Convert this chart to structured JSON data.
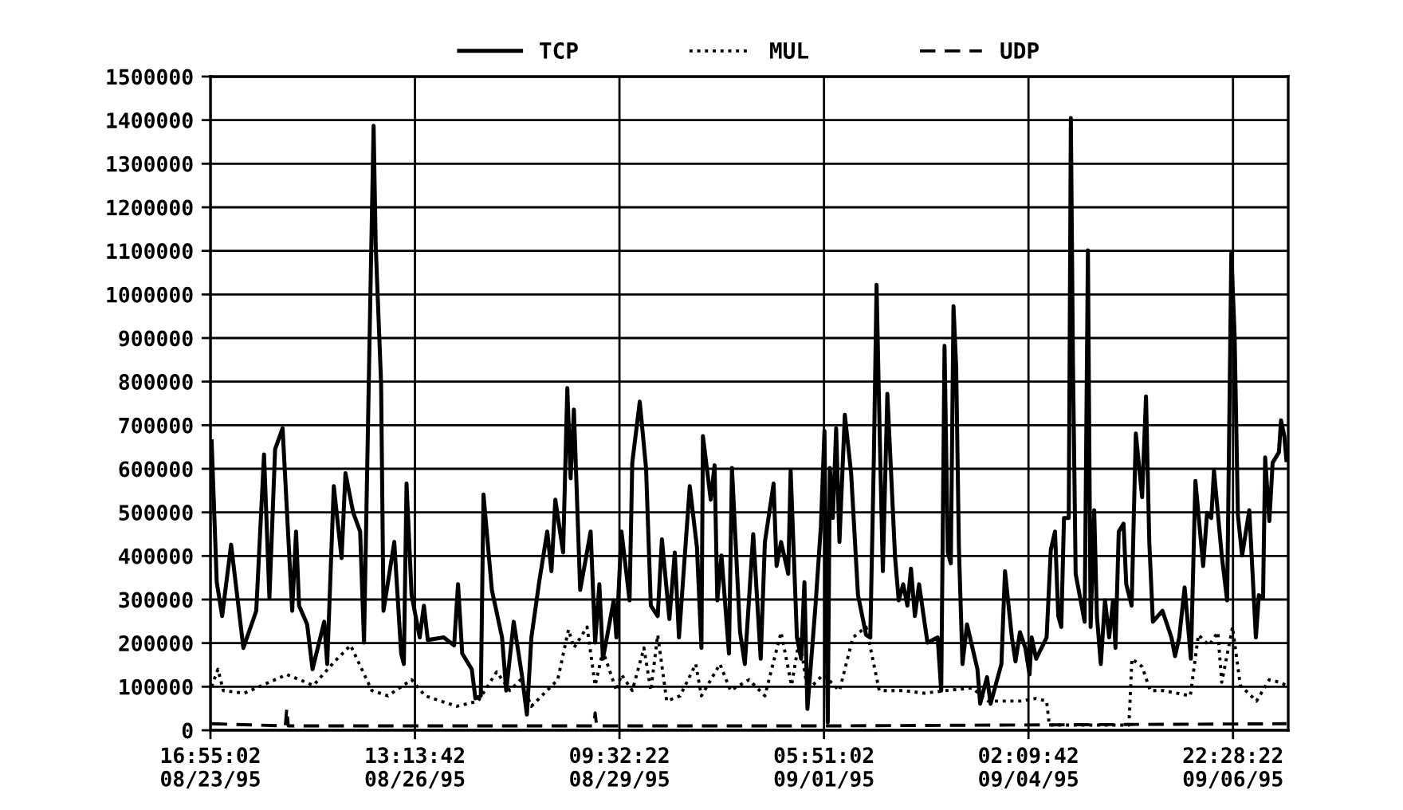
{
  "chart_data": {
    "type": "line",
    "legend": "top",
    "grid": true,
    "marker": "none",
    "xlim": [
      "1995-08-23T16:55:02",
      "1995-09-07T16:55"
    ],
    "ylim": [
      0,
      1500000
    ],
    "xticks": [
      {
        "value": "1995-08-23T16:55:02",
        "label": "16:55:02\n08/23/95"
      },
      {
        "value": "1995-08-26T13:13:42",
        "label": "13:13:42\n08/26/95"
      },
      {
        "value": "1995-08-29T09:32:22",
        "label": "09:32:22\n08/29/95"
      },
      {
        "value": "1995-09-01T05:51:02",
        "label": "05:51:02\n09/01/95"
      },
      {
        "value": "1995-09-04T02:09:42",
        "label": "02:09:42\n09/04/95"
      },
      {
        "value": "1995-09-06T22:28:22",
        "label": "22:28:22\n09/06/95"
      }
    ],
    "yticks": [
      0,
      100000,
      200000,
      300000,
      400000,
      500000,
      600000,
      700000,
      800000,
      900000,
      1000000,
      1100000,
      1200000,
      1300000,
      1400000,
      1500000
    ],
    "series": [
      {
        "name": "TCP",
        "color": "#000000",
        "line_style": "solid",
        "x": [
          "1995-08-23T17:19",
          "1995-08-23T19:01",
          "1995-08-23T20:49",
          "1995-08-23T23:49",
          "1995-08-24T03:55",
          "1995-08-24T08:13",
          "1995-08-24T10:49",
          "1995-08-24T12:37",
          "1995-08-24T14:31",
          "1995-08-24T17:01",
          "1995-08-24T20:13",
          "1995-08-24T21:31",
          "1995-08-24T22:31",
          "1995-08-25T01:13",
          "1995-08-25T03:01",
          "1995-08-25T06:55",
          "1995-08-25T07:55",
          "1995-08-25T10:07",
          "1995-08-25T12:43",
          "1995-08-25T14:01",
          "1995-08-25T16:37",
          "1995-08-25T18:55",
          "1995-08-25T20:13",
          "1995-08-25T22:19",
          "1995-08-25T23:25",
          "1995-08-26T00:07",
          "1995-08-26T01:55",
          "1995-08-26T02:43",
          "1995-08-26T06:19",
          "1995-08-26T08:37",
          "1995-08-26T09:31",
          "1995-08-26T10:25",
          "1995-08-26T12:07",
          "1995-08-26T14:49",
          "1995-08-26T16:13",
          "1995-08-26T17:31",
          "1995-08-26T22:49",
          "1995-08-27T02:19",
          "1995-08-27T03:37",
          "1995-08-27T05:01",
          "1995-08-27T08:13",
          "1995-08-27T09:25",
          "1995-08-27T11:13",
          "1995-08-27T12:07",
          "1995-08-27T14:55",
          "1995-08-27T18:19",
          "1995-08-27T19:43",
          "1995-08-27T22:13",
          "1995-08-28T00:55",
          "1995-08-28T02:37",
          "1995-08-28T04:07",
          "1995-08-28T06:43",
          "1995-08-28T09:25",
          "1995-08-28T10:49",
          "1995-08-28T12:07",
          "1995-08-28T14:43",
          "1995-08-28T16:07",
          "1995-08-28T17:13",
          "1995-08-28T18:19",
          "1995-08-28T20:25",
          "1995-08-28T23:55",
          "1995-08-29T01:25",
          "1995-08-29T02:49",
          "1995-08-29T04:01",
          "1995-08-29T07:37",
          "1995-08-29T08:31",
          "1995-08-29T10:13",
          "1995-08-29T12:55",
          "1995-08-29T13:49",
          "1995-08-29T16:19",
          "1995-08-29T18:25",
          "1995-08-29T20:01",
          "1995-08-29T22:19",
          "1995-08-29T23:43",
          "1995-08-30T02:13",
          "1995-08-30T04:01",
          "1995-08-30T05:25",
          "1995-08-30T09:01",
          "1995-08-30T11:25",
          "1995-08-30T12:55",
          "1995-08-30T13:25",
          "1995-08-30T16:01",
          "1995-08-30T17:19",
          "1995-08-30T18:13",
          "1995-08-30T19:37",
          "1995-08-30T22:07",
          "1995-08-30T23:07",
          "1995-08-31T01:49",
          "1995-08-31T03:25",
          "1995-08-31T06:13",
          "1995-08-31T08:43",
          "1995-08-31T10:07",
          "1995-08-31T13:01",
          "1995-08-31T14:01",
          "1995-08-31T15:31",
          "1995-08-31T17:55",
          "1995-08-31T18:43",
          "1995-08-31T20:49",
          "1995-08-31T22:13",
          "1995-08-31T23:19",
          "1995-09-01T00:19",
          "1995-09-01T03:01",
          "1995-09-01T04:49",
          "1995-09-01T06:01",
          "1995-09-01T07:07",
          "1995-09-01T07:49",
          "1995-09-01T08:49",
          "1995-09-01T09:55",
          "1995-09-01T11:01",
          "1995-09-01T12:49",
          "1995-09-01T14:55",
          "1995-09-01T17:13",
          "1995-09-01T19:55",
          "1995-09-01T21:19",
          "1995-09-01T22:31",
          "1995-09-01T23:25",
          "1995-09-02T00:31",
          "1995-09-02T01:31",
          "1995-09-02T03:01",
          "1995-09-02T05:37",
          "1995-09-02T06:49",
          "1995-09-02T08:19",
          "1995-09-02T09:43",
          "1995-09-02T10:55",
          "1995-09-02T12:13",
          "1995-09-02T13:37",
          "1995-09-02T16:25",
          "1995-09-02T19:49",
          "1995-09-02T21:01",
          "1995-09-02T22:07",
          "1995-09-02T23:13",
          "1995-09-03T00:13",
          "1995-09-03T01:07",
          "1995-09-03T02:01",
          "1995-09-03T02:55",
          "1995-09-03T04:07",
          "1995-09-03T05:37",
          "1995-09-03T09:07",
          "1995-09-03T10:01",
          "1995-09-03T12:19",
          "1995-09-03T13:31",
          "1995-09-03T17:07",
          "1995-09-03T18:19",
          "1995-09-03T20:37",
          "1995-09-03T21:49",
          "1995-09-03T23:19",
          "1995-09-04T01:07",
          "1995-09-04T02:31",
          "1995-09-04T03:13",
          "1995-09-04T04:43",
          "1995-09-04T08:13",
          "1995-09-04T09:37",
          "1995-09-04T11:01",
          "1995-09-04T12:07",
          "1995-09-04T13:07",
          "1995-09-04T14:01",
          "1995-09-04T15:37",
          "1995-09-04T16:19",
          "1995-09-04T17:01",
          "1995-09-04T17:55",
          "1995-09-04T20:55",
          "1995-09-04T22:01",
          "1995-09-04T22:55",
          "1995-09-05T00:07",
          "1995-09-05T01:01",
          "1995-09-05T02:19",
          "1995-09-05T03:43",
          "1995-09-05T05:07",
          "1995-09-05T06:25",
          "1995-09-05T07:13",
          "1995-09-05T08:19",
          "1995-09-05T09:55",
          "1995-09-05T10:49",
          "1995-09-05T12:37",
          "1995-09-05T14:01",
          "1995-09-05T16:07",
          "1995-09-05T17:25",
          "1995-09-05T18:31",
          "1995-09-05T19:43",
          "1995-09-05T22:55",
          "1995-09-06T01:55",
          "1995-09-06T03:07",
          "1995-09-06T04:31",
          "1995-09-06T06:19",
          "1995-09-06T08:25",
          "1995-09-06T09:55",
          "1995-09-06T12:31",
          "1995-09-06T13:49",
          "1995-09-06T15:13",
          "1995-09-06T16:07",
          "1995-09-06T18:43",
          "1995-09-06T20:31",
          "1995-09-06T21:55",
          "1995-09-06T23:01",
          "1995-09-07T00:07",
          "1995-09-07T01:31",
          "1995-09-07T03:55",
          "1995-09-07T06:07",
          "1995-09-07T07:07",
          "1995-09-07T08:31",
          "1995-09-07T09:13",
          "1995-09-07T10:37",
          "1995-09-07T11:43",
          "1995-09-07T13:49",
          "1995-09-07T14:31",
          "1995-09-07T15:37",
          "1995-09-07T16:19"
        ],
        "values": [
          663000,
          340000,
          262000,
          426000,
          189000,
          274000,
          633000,
          304000,
          645000,
          693000,
          274000,
          456000,
          286000,
          243000,
          140000,
          249000,
          152000,
          560000,
          395000,
          590000,
          499000,
          456000,
          201000,
          991000,
          1387000,
          1113000,
          797000,
          274000,
          432000,
          176000,
          152000,
          566000,
          310000,
          213000,
          286000,
          207000,
          213000,
          195000,
          335000,
          176000,
          140000,
          73000,
          79000,
          541000,
          322000,
          213000,
          91000,
          249000,
          128000,
          36000,
          213000,
          340000,
          456000,
          365000,
          529000,
          408000,
          785000,
          578000,
          736000,
          322000,
          456000,
          201000,
          335000,
          164000,
          298000,
          213000,
          456000,
          298000,
          614000,
          754000,
          602000,
          286000,
          262000,
          438000,
          255000,
          408000,
          213000,
          560000,
          420000,
          189000,
          675000,
          529000,
          608000,
          298000,
          401000,
          176000,
          602000,
          225000,
          152000,
          450000,
          164000,
          432000,
          566000,
          377000,
          432000,
          359000,
          596000,
          213000,
          164000,
          340000,
          49000,
          286000,
          468000,
          687000,
          18000,
          602000,
          487000,
          693000,
          432000,
          724000,
          590000,
          310000,
          219000,
          213000,
          626000,
          1022000,
          663000,
          365000,
          772000,
          395000,
          298000,
          335000,
          286000,
          371000,
          262000,
          335000,
          201000,
          213000,
          91000,
          882000,
          408000,
          383000,
          973000,
          833000,
          420000,
          152000,
          243000,
          140000,
          61000,
          122000,
          61000,
          152000,
          365000,
          213000,
          158000,
          225000,
          189000,
          128000,
          213000,
          164000,
          213000,
          414000,
          456000,
          262000,
          237000,
          487000,
          487000,
          1405000,
          845000,
          359000,
          249000,
          1101000,
          237000,
          505000,
          262000,
          152000,
          298000,
          213000,
          298000,
          189000,
          456000,
          474000,
          335000,
          286000,
          681000,
          535000,
          766000,
          432000,
          249000,
          274000,
          213000,
          170000,
          213000,
          328000,
          164000,
          572000,
          377000,
          499000,
          487000,
          596000,
          401000,
          298000,
          1095000,
          906000,
          493000,
          401000,
          505000,
          213000,
          310000,
          304000,
          626000,
          480000,
          614000,
          638000,
          711000,
          675000,
          620000
        ]
      },
      {
        "name": "MUL",
        "color": "#000000",
        "line_style": "dotted",
        "x": [
          "1995-08-23T17:19",
          "1995-08-23T19:25",
          "1995-08-23T21:13",
          "1995-08-24T04:13",
          "1995-08-24T18:25",
          "1995-08-25T03:19",
          "1995-08-25T10:25",
          "1995-08-25T15:43",
          "1995-08-25T21:07",
          "1995-08-25T22:49",
          "1995-08-26T04:13",
          "1995-08-26T12:07",
          "1995-08-26T16:37",
          "1995-08-27T03:13",
          "1995-08-27T10:19",
          "1995-08-27T16:31",
          "1995-08-27T20:55",
          "1995-08-28T00:31",
          "1995-08-28T04:07",
          "1995-08-28T12:55",
          "1995-08-28T16:31",
          "1995-08-28T18:19",
          "1995-08-28T22:43",
          "1995-08-29T01:25",
          "1995-08-29T04:01",
          "1995-08-29T08:31",
          "1995-08-29T10:13",
          "1995-08-29T13:49",
          "1995-08-29T17:43",
          "1995-08-29T20:01",
          "1995-08-29T22:19",
          "1995-08-30T01:19",
          "1995-08-30T05:49",
          "1995-08-30T11:01",
          "1995-08-30T12:55",
          "1995-08-30T19:07",
          "1995-08-30T22:37",
          "1995-08-31T04:49",
          "1995-08-31T10:07",
          "1995-08-31T15:31",
          "1995-08-31T19:01",
          "1995-08-31T21:43",
          "1995-09-01T00:19",
          "1995-09-01T05:37",
          "1995-09-01T11:01",
          "1995-09-01T15:31",
          "1995-09-01T19:55",
          "1995-09-02T00:19",
          "1995-09-02T08:19",
          "1995-09-02T15:25",
          "1995-09-02T22:25",
          "1995-09-03T07:19",
          "1995-09-03T12:43",
          "1995-09-03T23:19",
          "1995-09-04T04:43",
          "1995-09-04T08:13",
          "1995-09-04T09:07",
          "1995-09-05T11:43",
          "1995-09-05T12:43",
          "1995-09-05T16:07",
          "1995-09-05T18:49",
          "1995-09-05T23:19",
          "1995-09-06T08:13",
          "1995-09-06T10:55",
          "1995-09-06T14:25",
          "1995-09-06T17:25",
          "1995-09-06T18:43",
          "1995-09-06T22:19",
          "1995-09-07T00:55",
          "1995-09-07T06:19",
          "1995-09-07T10:37",
          "1995-09-07T14:13",
          "1995-09-07T16:19"
        ],
        "values": [
          100000,
          140000,
          91000,
          85000,
          128000,
          103000,
          158000,
          195000,
          116000,
          91000,
          79000,
          116000,
          79000,
          55000,
          67000,
          134000,
          91000,
          116000,
          55000,
          116000,
          231000,
          189000,
          237000,
          103000,
          182000,
          91000,
          128000,
          91000,
          189000,
          91000,
          219000,
          67000,
          79000,
          152000,
          79000,
          152000,
          91000,
          116000,
          79000,
          225000,
          103000,
          213000,
          91000,
          128000,
          91000,
          213000,
          237000,
          91000,
          91000,
          85000,
          91000,
          97000,
          67000,
          67000,
          73000,
          67000,
          12000,
          12000,
          164000,
          146000,
          91000,
          91000,
          79000,
          219000,
          195000,
          225000,
          110000,
          237000,
          103000,
          67000,
          116000,
          110000,
          103000
        ]
      },
      {
        "name": "UDP",
        "color": "#000000",
        "line_style": "dashed",
        "x": [
          "1995-08-23T17:19",
          "1995-08-24T17:55",
          "1995-08-24T18:25",
          "1995-08-24T18:55",
          "1995-08-29T00:55",
          "1995-08-29T01:25",
          "1995-08-29T01:55",
          "1995-09-01T06:55",
          "1995-09-07T16:19"
        ],
        "values": [
          15000,
          10000,
          50000,
          10000,
          10000,
          40000,
          10000,
          10000,
          15000
        ]
      }
    ]
  }
}
